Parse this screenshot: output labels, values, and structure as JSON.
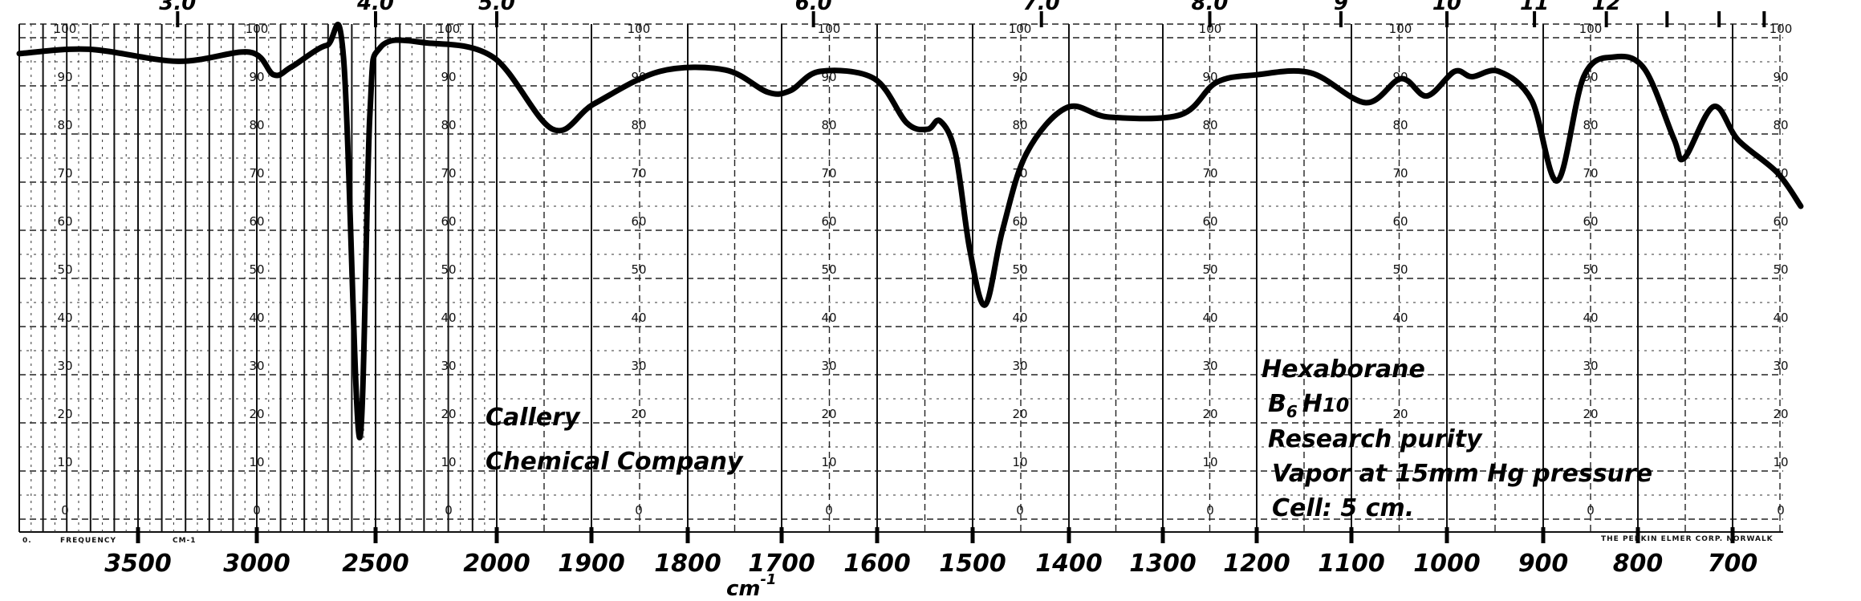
{
  "chart_data": {
    "type": "line",
    "title": "Hexaborane",
    "xlabel": "cm-1",
    "ylabel": "",
    "xlim": [
      4000,
      625
    ],
    "ylim": [
      0,
      100
    ],
    "grid": true,
    "x_ticks": [
      3500,
      3000,
      2500,
      2000,
      1900,
      1800,
      1700,
      1600,
      1500,
      1400,
      1300,
      1200,
      1100,
      1000,
      900,
      800,
      700
    ],
    "x_tick_labels": [
      "3500",
      "3000",
      "2500",
      "2000",
      "1900",
      "1800",
      "1700",
      "1600",
      "1500",
      "1400",
      "1300",
      "1200",
      "1100",
      "1000",
      "900",
      "800",
      "700"
    ],
    "y_tick_labels": [
      "100",
      "90",
      "80",
      "70",
      "60",
      "50",
      "40",
      "30",
      "20",
      "10",
      "0"
    ],
    "wavelength_ticks": [
      {
        "um": 3.0,
        "label": "3.0"
      },
      {
        "um": 4.0,
        "label": "4.0"
      },
      {
        "um": 5.0,
        "label": "5.0"
      },
      {
        "um": 6.0,
        "label": "6.0"
      },
      {
        "um": 7.0,
        "label": "7.0"
      },
      {
        "um": 8.0,
        "label": "8.0"
      },
      {
        "um": 9,
        "label": "9"
      },
      {
        "um": 10,
        "label": "10"
      },
      {
        "um": 11,
        "label": "11"
      },
      {
        "um": 12,
        "label": "12"
      },
      {
        "um": 13,
        "label": ""
      },
      {
        "um": 14,
        "label": ""
      },
      {
        "um": 15,
        "label": ""
      }
    ],
    "series": [
      {
        "name": "Hexaborane B6H10 vapor",
        "x": [
          4000,
          3706,
          3331,
          3030,
          2929,
          2855,
          2706,
          2635,
          2568,
          2524,
          2480,
          2285,
          2013,
          1941,
          1897,
          1829,
          1760,
          1715,
          1691,
          1660,
          1603,
          1569,
          1547,
          1534,
          1518,
          1503,
          1487,
          1469,
          1444,
          1402,
          1357,
          1281,
          1243,
          1200,
          1143,
          1085,
          1048,
          1021,
          992,
          974,
          946,
          912,
          885,
          857,
          825,
          793,
          762,
          751,
          720,
          694,
          653,
          628
        ],
        "y": [
          96.7,
          97.6,
          95.1,
          97,
          92.3,
          93.9,
          98.4,
          95.9,
          17,
          84,
          98,
          98.9,
          95.9,
          81,
          86.3,
          93,
          93.3,
          88.7,
          89,
          93,
          91.5,
          82.3,
          81,
          82.7,
          76,
          56,
          44.5,
          60,
          76,
          85.5,
          83.5,
          84,
          90.7,
          92.3,
          92.7,
          86.5,
          91.5,
          87.9,
          93,
          91.9,
          93,
          87,
          70.3,
          92,
          96,
          93.5,
          79,
          75,
          85.7,
          78.7,
          72,
          65
        ]
      }
    ],
    "annotations": {
      "company_line1": "Callery",
      "company_line2": "Chemical Company",
      "compound": "Hexaborane",
      "formula_b": "B",
      "formula_6": "6",
      "formula_h": "H",
      "formula_10": "10",
      "purity": "Research purity",
      "conditions": "Vapor at 15mm Hg pressure",
      "cell": "Cell: 5 cm.",
      "unit": "cm",
      "unit_exp": "-1",
      "frequency_label": "FREQUENCY",
      "frequency_unit": "CM-1",
      "manufacturer": "THE PERKIN ELMER CORP. NORWALK"
    },
    "colors": {
      "curve": "#000000",
      "grid": "#111111"
    }
  }
}
